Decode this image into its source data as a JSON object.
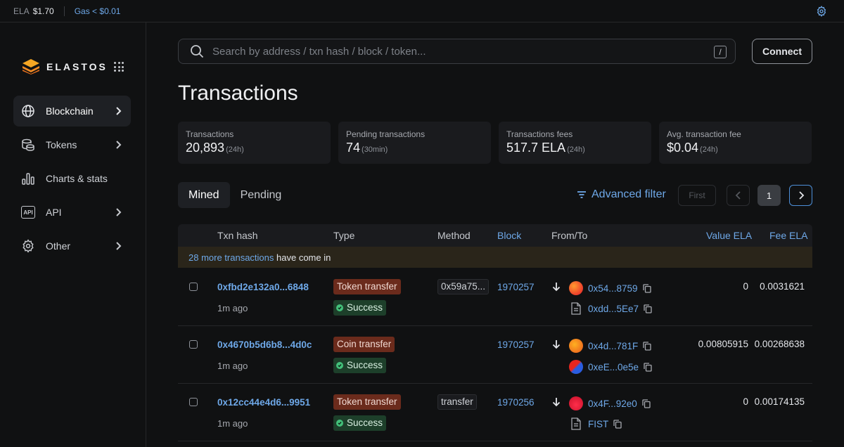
{
  "topbar": {
    "ela_label": "ELA",
    "ela_price": "$1.70",
    "gas": "Gas < $0.01"
  },
  "brand": {
    "name": "ELASTOS"
  },
  "sidebar": {
    "items": [
      {
        "label": "Blockchain",
        "icon": "globe-icon",
        "active": true
      },
      {
        "label": "Tokens",
        "icon": "coins-icon"
      },
      {
        "label": "Charts & stats",
        "icon": "bar-chart-icon"
      },
      {
        "label": "API",
        "icon": "api-icon"
      },
      {
        "label": "Other",
        "icon": "gear-icon"
      }
    ]
  },
  "search": {
    "placeholder": "Search by address / txn hash / block / token...",
    "shortcut": "/"
  },
  "header": {
    "connect_label": "Connect",
    "title": "Transactions"
  },
  "stats": [
    {
      "label": "Transactions",
      "value": "20,893",
      "period": "(24h)"
    },
    {
      "label": "Pending transactions",
      "value": "74",
      "period": "(30min)"
    },
    {
      "label": "Transactions fees",
      "value": "517.7 ELA",
      "period": "(24h)"
    },
    {
      "label": "Avg. transaction fee",
      "value": "$0.04",
      "period": "(24h)"
    }
  ],
  "tabs": [
    {
      "label": "Mined",
      "active": true
    },
    {
      "label": "Pending"
    }
  ],
  "filter": {
    "label": "Advanced filter"
  },
  "pagination": {
    "first": "First",
    "current": "1"
  },
  "table": {
    "columns": {
      "hash": "Txn hash",
      "type": "Type",
      "method": "Method",
      "block": "Block",
      "fromto": "From/To",
      "value": "Value ELA",
      "fee": "Fee ELA"
    },
    "notice_link": "28 more transactions",
    "notice_text": " have come in",
    "rows": [
      {
        "hash": "0xfbd2e132a0...6848",
        "age": "1m ago",
        "type": "Token transfer",
        "status": "Success",
        "method": "0x59a75...",
        "block": "1970257",
        "from": "0x54...8759",
        "to": "0xdd...5Ee7",
        "value": "0",
        "fee": "0.0031621"
      },
      {
        "hash": "0x4670b5d6b8...4d0c",
        "age": "1m ago",
        "type": "Coin transfer",
        "status": "Success",
        "method": "",
        "block": "1970257",
        "from": "0x4d...781F",
        "to": "0xeE...0e5e",
        "value": "0.00805915",
        "fee": "0.00268638"
      },
      {
        "hash": "0x12cc44e4d6...9951",
        "age": "1m ago",
        "type": "Token transfer",
        "status": "Success",
        "method": "transfer",
        "block": "1970256",
        "from": "0x4F...92e0",
        "to": "FIST",
        "value": "0",
        "fee": "0.00174135"
      }
    ]
  },
  "colors": {
    "accent": "#6ea8e8",
    "type_badge": "#6b2b1c",
    "success_badge": "#1d3f2a",
    "success_dot": "#43c07a",
    "notice_bg": "#2a251a"
  }
}
